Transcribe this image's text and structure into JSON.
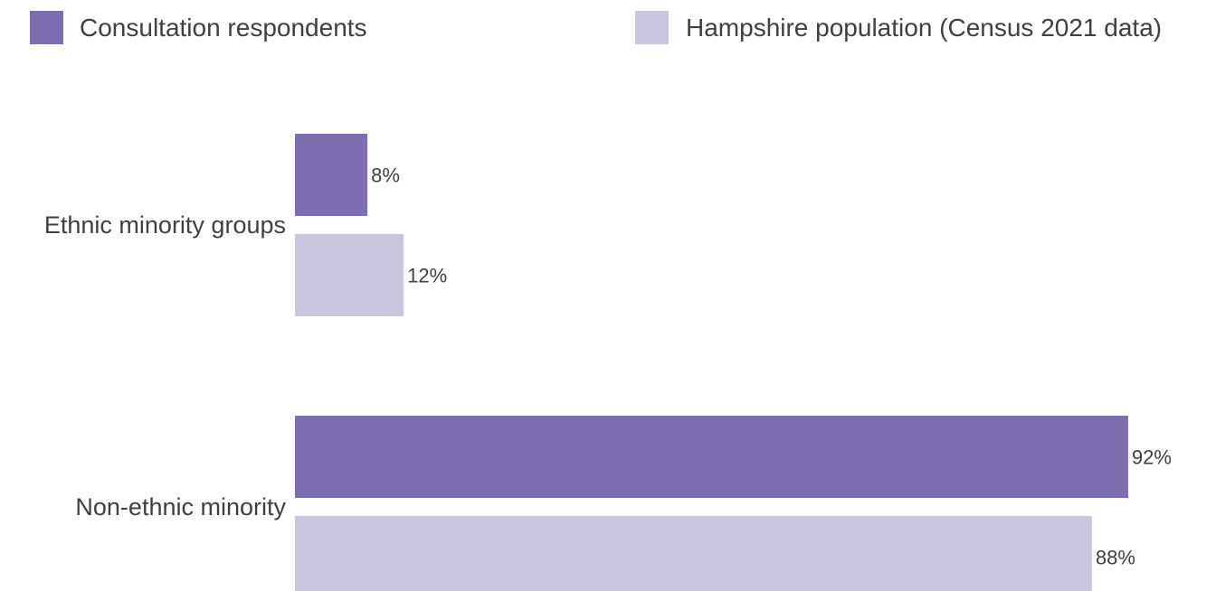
{
  "chart_data": {
    "type": "bar",
    "orientation": "horizontal",
    "categories": [
      "Ethnic minority groups",
      "Non-ethnic minority"
    ],
    "series": [
      {
        "name": "Consultation respondents",
        "values": [
          8,
          92
        ],
        "labels": [
          "8%",
          "92%"
        ],
        "color": "#7f6db1"
      },
      {
        "name": "Hampshire population (Census 2021 data)",
        "values": [
          12,
          88
        ],
        "labels": [
          "12%",
          "88%"
        ],
        "color": "#cbc6e0"
      }
    ],
    "xlim": [
      0,
      100
    ],
    "unit": "%",
    "grid": false,
    "legend": "top"
  }
}
